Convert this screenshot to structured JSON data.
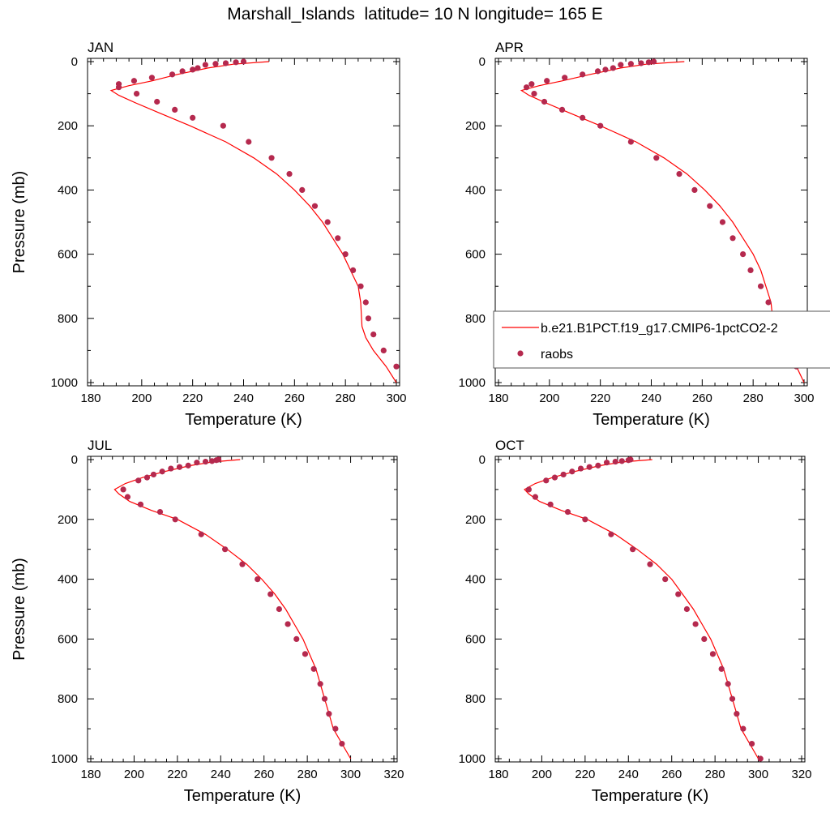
{
  "figure": {
    "title": "Marshall_Islands  latitude= 10 N longitude= 165 E",
    "colors": {
      "model_line": "#ff0000",
      "obs_marker": "#b5294e",
      "axis": "#000000"
    }
  },
  "chart_data": [
    {
      "type": "line",
      "panel_label": "JAN",
      "xlabel": "Temperature (K)",
      "ylabel": "Pressure (mb)",
      "xlim": [
        180,
        300
      ],
      "ylim": [
        1000,
        0
      ],
      "y_inverted": true,
      "xticks": [
        180,
        200,
        220,
        240,
        260,
        280,
        300
      ],
      "yticks": [
        0,
        200,
        400,
        600,
        800,
        1000
      ],
      "grid": false,
      "series": [
        {
          "name": "",
          "kind": "line",
          "x": [
            250,
            236,
            226,
            214,
            204,
            195,
            188,
            191,
            198,
            207,
            219,
            233,
            244,
            253,
            260,
            266,
            271,
            275,
            279,
            282,
            285,
            286,
            286.5,
            288,
            291,
            296,
            300
          ],
          "y": [
            0,
            8,
            20,
            40,
            60,
            75,
            90,
            105,
            130,
            160,
            200,
            250,
            300,
            350,
            400,
            450,
            500,
            550,
            600,
            650,
            700,
            750,
            825,
            860,
            900,
            950,
            1000
          ]
        },
        {
          "name": "",
          "kind": "scatter",
          "x": [
            240,
            237,
            233,
            229,
            225,
            222,
            220,
            216,
            212,
            204,
            197,
            191,
            191,
            198,
            206,
            213,
            220,
            232,
            242,
            251,
            258,
            263,
            268,
            273,
            277,
            280,
            283,
            286,
            288,
            289,
            291,
            295,
            300
          ],
          "y": [
            0,
            2,
            5,
            7,
            10,
            20,
            25,
            30,
            40,
            50,
            60,
            70,
            80,
            100,
            125,
            150,
            175,
            200,
            250,
            300,
            350,
            400,
            450,
            500,
            550,
            600,
            650,
            700,
            750,
            800,
            850,
            900,
            950
          ]
        }
      ]
    },
    {
      "type": "line",
      "panel_label": "APR",
      "xlabel": "Temperature (K)",
      "xlim": [
        180,
        300
      ],
      "ylim": [
        1000,
        0
      ],
      "y_inverted": true,
      "xticks": [
        180,
        200,
        220,
        240,
        260,
        280,
        300
      ],
      "yticks": [
        0,
        200,
        400,
        600,
        800,
        1000
      ],
      "grid": false,
      "legend": {
        "placement": "lower-right",
        "entries": [
          "b.e21.B1PCT.f19_g17.CMIP6-1pctCO2-2",
          "raobs"
        ]
      },
      "series": [
        {
          "name": "b.e21.B1PCT.f19_g17.CMIP6-1pctCO2-2",
          "kind": "line",
          "x": [
            253,
            238,
            228,
            216,
            205,
            196,
            189,
            192,
            199,
            208,
            220,
            234,
            245,
            254,
            261,
            267,
            272,
            276,
            280,
            283,
            285,
            287,
            288,
            290,
            293,
            297,
            300
          ],
          "y": [
            0,
            8,
            20,
            40,
            60,
            75,
            90,
            105,
            130,
            160,
            200,
            250,
            300,
            350,
            400,
            450,
            500,
            550,
            600,
            650,
            700,
            750,
            825,
            860,
            900,
            950,
            1000
          ]
        },
        {
          "name": "raobs",
          "kind": "scatter",
          "x": [
            241,
            239,
            236,
            232,
            228,
            225,
            222,
            219,
            213,
            206,
            199,
            193,
            191,
            194,
            198,
            205,
            213,
            220,
            232,
            242,
            251,
            257,
            263,
            268,
            272,
            276,
            279,
            283,
            286,
            288,
            290,
            293,
            297
          ],
          "y": [
            0,
            2,
            5,
            7,
            10,
            20,
            25,
            30,
            40,
            50,
            60,
            70,
            80,
            100,
            125,
            150,
            175,
            200,
            250,
            300,
            350,
            400,
            450,
            500,
            550,
            600,
            650,
            700,
            750,
            800,
            850,
            900,
            950
          ]
        }
      ]
    },
    {
      "type": "line",
      "panel_label": "JUL",
      "xlabel": "Temperature (K)",
      "ylabel": "Pressure (mb)",
      "xlim": [
        180,
        320
      ],
      "ylim": [
        1000,
        0
      ],
      "y_inverted": true,
      "xticks": [
        180,
        200,
        220,
        240,
        260,
        280,
        300,
        320
      ],
      "yticks": [
        0,
        200,
        400,
        600,
        800,
        1000
      ],
      "grid": false,
      "series": [
        {
          "name": "",
          "kind": "line",
          "x": [
            249,
            236,
            226,
            214,
            204,
            196,
            191,
            193,
            198,
            208,
            220,
            233,
            243,
            252,
            259,
            265,
            270,
            274,
            278,
            281,
            284,
            286,
            288,
            290,
            292,
            296,
            300
          ],
          "y": [
            0,
            8,
            20,
            40,
            60,
            80,
            100,
            115,
            140,
            170,
            200,
            250,
            300,
            350,
            400,
            450,
            500,
            550,
            600,
            650,
            700,
            750,
            800,
            850,
            900,
            950,
            1000
          ]
        },
        {
          "name": "",
          "kind": "scatter",
          "x": [
            239,
            238,
            236,
            233,
            229,
            225,
            221,
            217,
            213,
            209,
            206,
            202,
            195,
            197,
            203,
            212,
            219,
            231,
            242,
            250,
            257,
            263,
            267,
            271,
            275,
            279,
            283,
            286,
            288,
            290,
            293,
            296
          ],
          "y": [
            0,
            2,
            5,
            7,
            10,
            20,
            25,
            30,
            40,
            50,
            60,
            70,
            100,
            125,
            150,
            175,
            200,
            250,
            300,
            350,
            400,
            450,
            500,
            550,
            600,
            650,
            700,
            750,
            800,
            850,
            900,
            950
          ]
        }
      ]
    },
    {
      "type": "line",
      "panel_label": "OCT",
      "xlabel": "Temperature (K)",
      "xlim": [
        180,
        320
      ],
      "ylim": [
        1000,
        0
      ],
      "y_inverted": true,
      "xticks": [
        180,
        200,
        220,
        240,
        260,
        280,
        300,
        320
      ],
      "yticks": [
        0,
        200,
        400,
        600,
        800,
        1000
      ],
      "grid": false,
      "series": [
        {
          "name": "",
          "kind": "line",
          "x": [
            251,
            237,
            227,
            215,
            205,
            197,
            192,
            194,
            199,
            209,
            221,
            234,
            244,
            253,
            260,
            265,
            270,
            274,
            278,
            281,
            284,
            286,
            288,
            290,
            292,
            296,
            300
          ],
          "y": [
            0,
            8,
            20,
            40,
            60,
            80,
            100,
            115,
            140,
            170,
            200,
            250,
            300,
            350,
            400,
            450,
            500,
            550,
            600,
            650,
            700,
            750,
            800,
            850,
            900,
            950,
            1000
          ]
        },
        {
          "name": "",
          "kind": "scatter",
          "x": [
            241,
            240,
            237,
            234,
            230,
            226,
            222,
            218,
            214,
            210,
            206,
            202,
            194,
            197,
            204,
            212,
            220,
            232,
            242,
            250,
            257,
            263,
            267,
            271,
            275,
            279,
            283,
            286,
            288,
            290,
            293,
            297,
            301
          ],
          "y": [
            0,
            2,
            5,
            7,
            10,
            20,
            25,
            30,
            40,
            50,
            60,
            70,
            100,
            125,
            150,
            175,
            200,
            250,
            300,
            350,
            400,
            450,
            500,
            550,
            600,
            650,
            700,
            750,
            800,
            850,
            900,
            950,
            1000
          ]
        }
      ]
    }
  ]
}
